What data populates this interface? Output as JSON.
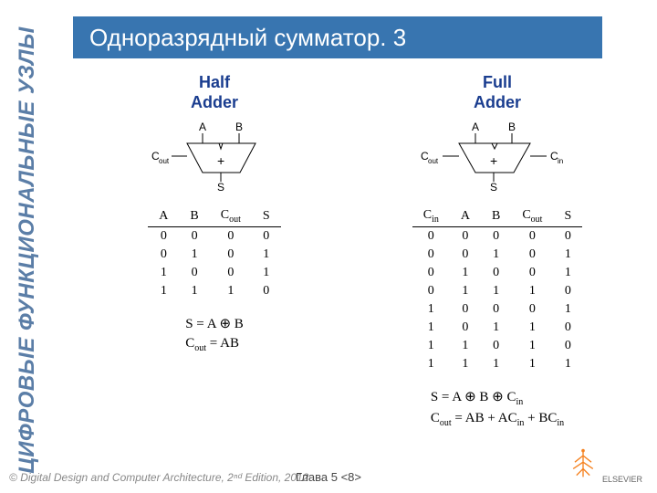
{
  "sidebar_text": "ЦИФРОВЫЕ ФУНКЦИОНАЛЬНЫЕ УЗЛЫ",
  "title": "Одноразрядный сумматор. 3",
  "half": {
    "title_l1": "Half",
    "title_l2": "Adder",
    "inputs": [
      "A",
      "B"
    ],
    "cout_label": "C",
    "cout_sub": "out",
    "sum_label": "S",
    "symbol": "+",
    "truth_headers": [
      "A",
      "B",
      "Cout",
      "S"
    ],
    "truth_header_subs": [
      "",
      "",
      "out",
      ""
    ],
    "truth_rows": [
      [
        "0",
        "0",
        "0",
        "0"
      ],
      [
        "0",
        "1",
        "0",
        "1"
      ],
      [
        "1",
        "0",
        "0",
        "1"
      ],
      [
        "1",
        "1",
        "1",
        "0"
      ]
    ],
    "eq_s": "S     = A ⊕ B",
    "eq_c_lhs": "C",
    "eq_c_sub": "out",
    "eq_c_rhs": " = AB"
  },
  "full": {
    "title_l1": "Full",
    "title_l2": "Adder",
    "inputs": [
      "A",
      "B"
    ],
    "cin_label": "C",
    "cin_sub": "in",
    "cout_label": "C",
    "cout_sub": "out",
    "sum_label": "S",
    "symbol": "+",
    "truth_headers": [
      "Cin",
      "A",
      "B",
      "Cout",
      "S"
    ],
    "truth_header_subs": [
      "in",
      "",
      "",
      "out",
      ""
    ],
    "truth_rows": [
      [
        "0",
        "0",
        "0",
        "0",
        "0"
      ],
      [
        "0",
        "0",
        "1",
        "0",
        "1"
      ],
      [
        "0",
        "1",
        "0",
        "0",
        "1"
      ],
      [
        "0",
        "1",
        "1",
        "1",
        "0"
      ],
      [
        "1",
        "0",
        "0",
        "0",
        "1"
      ],
      [
        "1",
        "0",
        "1",
        "1",
        "0"
      ],
      [
        "1",
        "1",
        "0",
        "1",
        "0"
      ],
      [
        "1",
        "1",
        "1",
        "1",
        "1"
      ]
    ],
    "eq_s_lhs": "S     = A ⊕ B ⊕ C",
    "eq_s_sub": "in",
    "eq_c_lhs": "C",
    "eq_c_sub1": "out",
    "eq_c_mid": " = AB + AC",
    "eq_c_sub2": "in",
    "eq_c_mid2": " + BC",
    "eq_c_sub3": "in"
  },
  "footer": {
    "left_prefix": "© ",
    "left_book": "Digital Design and Computer Architecture",
    "left_suffix": ", 2ⁿᵈ Edition, 2012",
    "center": "Глава 5 <8>",
    "right": "ELSEVIER"
  },
  "colors": {
    "title_bg": "#3875b0",
    "title_fg": "#ffffff",
    "sidebar_fg": "#5b7ea7",
    "block_title": "#1a3d8f",
    "logo": "#f58220"
  }
}
